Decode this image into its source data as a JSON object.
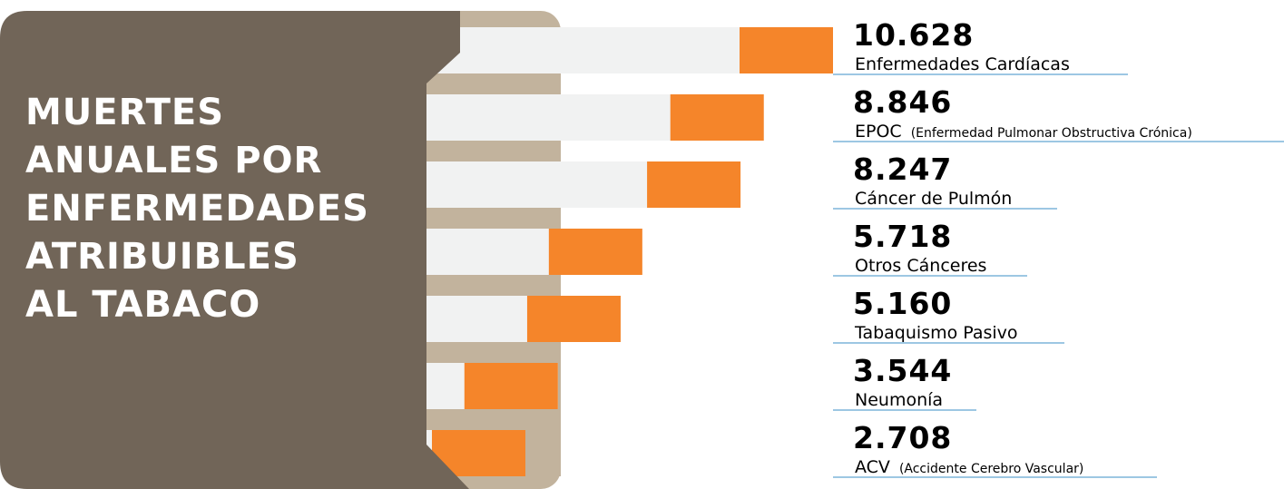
{
  "colors": {
    "panel": "#716558",
    "tan": "#c2b39d",
    "track": "#f1f2f2",
    "bar": "#f5852a",
    "text": "#000000",
    "line": "#3b8fc7",
    "title": "#ffffff"
  },
  "chart_data": {
    "type": "bar",
    "title_lines": [
      "MUERTES",
      "ANUALES POR",
      "ENFERMEDADES",
      "ATRIBUIBLES",
      "AL TABACO"
    ],
    "categories": [
      "Enfermedades Cardíacas",
      "EPOC",
      "Cáncer de Pulmón",
      "Otros Cánceres",
      "Tabaquismo Pasivo",
      "Neumonía",
      "ACV"
    ],
    "subtitles": [
      "",
      "(Enfermedad Pulmonar Obstructiva Crónica)",
      "",
      "",
      "",
      "",
      "(Accidente Cerebro Vascular)"
    ],
    "values": [
      10628,
      8846,
      8247,
      5718,
      5160,
      3544,
      2708
    ],
    "value_labels": [
      "10.628",
      "8.846",
      "8.247",
      "5.718",
      "5.160",
      "3.544",
      "2.708"
    ]
  }
}
